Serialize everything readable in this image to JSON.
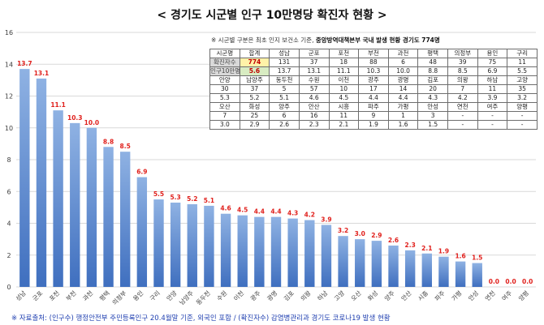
{
  "title": "< 경기도 시군별 인구 10만명당 확진자 현황 >",
  "note": {
    "prefix": "※ 시군별 구분은 최초 인지 보건소 기준,",
    "bold": "중앙방역대책본부 국내 발생 현황 경기도 774명"
  },
  "source": "※ 자료출처: (인구수) 행정안전부 주민등록인구 20.4월말 기준, 외국인 포함 / (확진자수) 감염병관리과 경기도 코로나19 발생 현황",
  "table": {
    "rows": [
      [
        "시군명",
        "합계",
        "성남",
        "군포",
        "포천",
        "부천",
        "과천",
        "평택",
        "의정부",
        "용인",
        "구리"
      ],
      [
        "확진자수",
        "774",
        "131",
        "37",
        "18",
        "88",
        "6",
        "48",
        "39",
        "75",
        "11"
      ],
      [
        "인구10만명당",
        "5.6",
        "13.7",
        "13.1",
        "11.1",
        "10.3",
        "10.0",
        "8.8",
        "8.5",
        "6.9",
        "5.5"
      ],
      [
        "안양",
        "남양주",
        "동두천",
        "수원",
        "이천",
        "광주",
        "광명",
        "김포",
        "의왕",
        "하남",
        "고양"
      ],
      [
        "30",
        "37",
        "5",
        "57",
        "10",
        "17",
        "14",
        "20",
        "7",
        "11",
        "35"
      ],
      [
        "5.3",
        "5.2",
        "5.1",
        "4.6",
        "4.5",
        "4.4",
        "4.4",
        "4.3",
        "4.2",
        "3.9",
        "3.2"
      ],
      [
        "오산",
        "화성",
        "양주",
        "안산",
        "시흥",
        "파주",
        "가평",
        "안성",
        "연천",
        "여주",
        "양평"
      ],
      [
        "7",
        "25",
        "6",
        "16",
        "11",
        "9",
        "1",
        "3",
        "-",
        "-",
        "-"
      ],
      [
        "3.0",
        "2.9",
        "2.6",
        "2.3",
        "2.1",
        "1.9",
        "1.6",
        "1.5",
        "-",
        "-",
        "-"
      ]
    ]
  },
  "chart_data": {
    "type": "bar",
    "title": "< 경기도 시군별 인구 10만명당 확진자 현황 >",
    "categories": [
      "성남",
      "군포",
      "포천",
      "부천",
      "과천",
      "평택",
      "의정부",
      "용인",
      "구리",
      "안양",
      "남양주",
      "동두천",
      "수원",
      "이천",
      "광주",
      "광명",
      "김포",
      "의왕",
      "하남",
      "고양",
      "오산",
      "화성",
      "양주",
      "안산",
      "시흥",
      "파주",
      "가평",
      "안성",
      "연천",
      "여주",
      "양평"
    ],
    "values": [
      13.7,
      13.1,
      11.1,
      10.3,
      10.0,
      8.8,
      8.5,
      6.9,
      5.5,
      5.3,
      5.2,
      5.1,
      4.6,
      4.5,
      4.4,
      4.4,
      4.3,
      4.2,
      3.9,
      3.2,
      3.0,
      2.9,
      2.6,
      2.3,
      2.1,
      1.9,
      1.6,
      1.5,
      0.0,
      0.0,
      0.0
    ],
    "value_labels": [
      "13.7",
      "13.1",
      "11.1",
      "10.3",
      "10.0",
      "8.8",
      "8.5",
      "6.9",
      "5.5",
      "5.3",
      "5.2",
      "5.1",
      "4.6",
      "4.5",
      "4.4",
      "4.4",
      "4.3",
      "4.2",
      "3.9",
      "3.2",
      "3.0",
      "2.9",
      "2.6",
      "2.3",
      "2.1",
      "1.9",
      "1.6",
      "1.5",
      "0.0",
      "0.0",
      "0.0"
    ],
    "ylim": [
      0,
      16
    ],
    "yticks": [
      "0",
      "2",
      "4",
      "6",
      "8",
      "10",
      "12",
      "14",
      "16"
    ],
    "xlabel": "",
    "ylabel": "",
    "grid": true,
    "colors": {
      "bar_top": "#8fb2e3",
      "bar_bottom": "#3f6fbf",
      "label": "#e0201c",
      "grid": "#d9d9d9",
      "axis_text": "#404040"
    }
  }
}
